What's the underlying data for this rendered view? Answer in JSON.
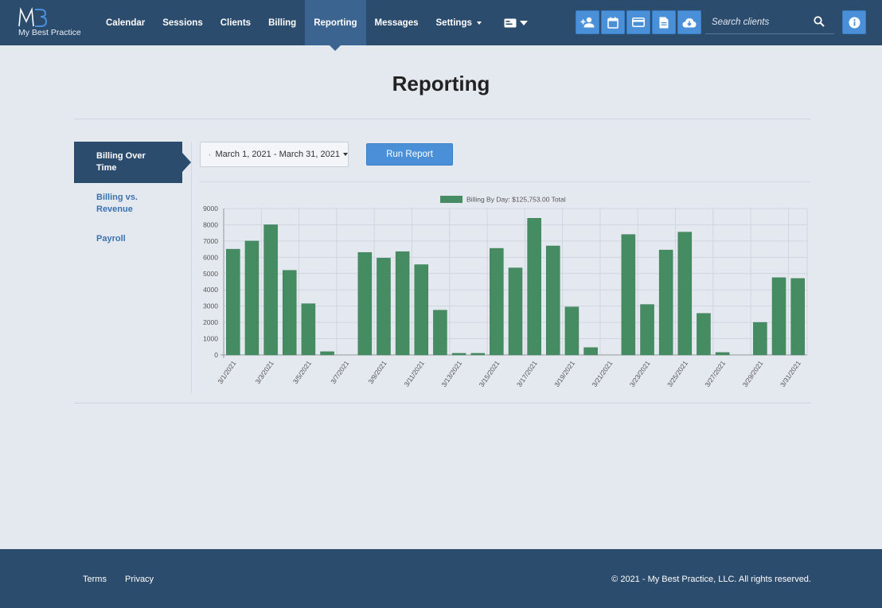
{
  "brand": {
    "name": "My Best Practice"
  },
  "nav": {
    "items": [
      {
        "label": "Calendar"
      },
      {
        "label": "Sessions"
      },
      {
        "label": "Clients"
      },
      {
        "label": "Billing"
      },
      {
        "label": "Reporting",
        "active": true
      },
      {
        "label": "Messages"
      },
      {
        "label": "Settings"
      }
    ]
  },
  "toolbar": {
    "icons": [
      "add-client-icon",
      "calendar-icon",
      "credit-card-icon",
      "document-icon",
      "cloud-download-icon"
    ],
    "search_placeholder": "Search clients"
  },
  "page": {
    "title": "Reporting"
  },
  "sidebar": {
    "items": [
      {
        "label": "Billing Over Time",
        "active": true
      },
      {
        "label": "Billing vs. Revenue"
      },
      {
        "label": "Payroll"
      }
    ]
  },
  "report": {
    "date_range": "March 1, 2021 - March 31, 2021",
    "run_label": "Run Report"
  },
  "chart_data": {
    "type": "bar",
    "legend": "Billing By Day: $125,753.00 Total",
    "legend_position": "top",
    "color": "#468c63",
    "grid": true,
    "ylim": [
      0,
      9000
    ],
    "yticks": [
      0,
      1000,
      2000,
      3000,
      4000,
      5000,
      6000,
      7000,
      8000,
      9000
    ],
    "categories": [
      "3/1/2021",
      "3/2/2021",
      "3/3/2021",
      "3/4/2021",
      "3/5/2021",
      "3/6/2021",
      "3/7/2021",
      "3/8/2021",
      "3/9/2021",
      "3/10/2021",
      "3/11/2021",
      "3/12/2021",
      "3/13/2021",
      "3/14/2021",
      "3/15/2021",
      "3/16/2021",
      "3/17/2021",
      "3/18/2021",
      "3/19/2021",
      "3/20/2021",
      "3/21/2021",
      "3/22/2021",
      "3/23/2021",
      "3/24/2021",
      "3/25/2021",
      "3/26/2021",
      "3/27/2021",
      "3/28/2021",
      "3/29/2021",
      "3/30/2021",
      "3/31/2021"
    ],
    "visible_xticks": [
      "3/1/2021",
      "3/3/2021",
      "3/5/2021",
      "3/7/2021",
      "3/9/2021",
      "3/11/2021",
      "3/13/2021",
      "3/15/2021",
      "3/17/2021",
      "3/19/2021",
      "3/21/2021",
      "3/23/2021",
      "3/25/2021",
      "3/27/2021",
      "3/29/2021",
      "3/31/2021"
    ],
    "values": [
      6500,
      7000,
      8000,
      5200,
      3150,
      200,
      0,
      6300,
      5950,
      6350,
      5550,
      2750,
      100,
      100,
      6550,
      5350,
      8400,
      6700,
      2950,
      450,
      0,
      7400,
      3100,
      6450,
      7550,
      2550,
      150,
      0,
      2000,
      4750,
      4700
    ]
  },
  "footer": {
    "terms": "Terms",
    "privacy": "Privacy",
    "copyright": "© 2021 - My Best Practice, LLC. All rights reserved."
  }
}
